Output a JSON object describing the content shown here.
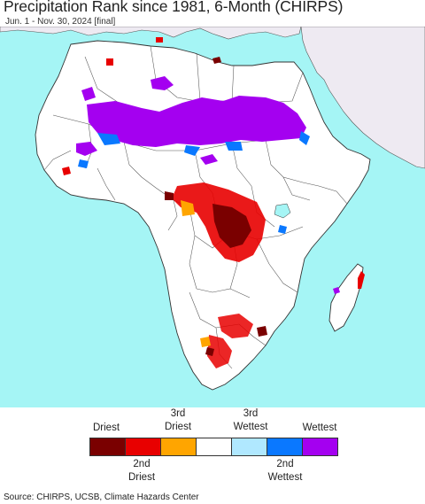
{
  "header": {
    "title": "Precipitation Rank since 1981, 6-Month (CHIRPS)",
    "subtitle": "Jun. 1 - Nov. 30, 2024 [final]"
  },
  "legend": {
    "top_labels": [
      {
        "name": "driest",
        "line1": "Driest",
        "line2": ""
      },
      {
        "name": "3rd-driest",
        "line1": "3rd",
        "line2": "Driest"
      },
      {
        "name": "3rd-wettest",
        "line1": "3rd",
        "line2": "Wettest"
      },
      {
        "name": "wettest",
        "line1": "Wettest",
        "line2": ""
      }
    ],
    "bottom_labels": [
      {
        "name": "2nd-driest",
        "line1": "2nd",
        "line2": "Driest"
      },
      {
        "name": "2nd-wettest",
        "line1": "2nd",
        "line2": "Wettest"
      }
    ],
    "swatches": [
      {
        "name": "driest",
        "color": "#7a0000"
      },
      {
        "name": "2nd-driest",
        "color": "#e80000"
      },
      {
        "name": "3rd-driest",
        "color": "#ffa500"
      },
      {
        "name": "normal",
        "color": "#ffffff"
      },
      {
        "name": "3rd-wettest",
        "color": "#b0e8ff"
      },
      {
        "name": "2nd-wettest",
        "color": "#0a78ff"
      },
      {
        "name": "wettest",
        "color": "#a400f0"
      }
    ]
  },
  "map": {
    "ocean_color": "#a5f5f5",
    "land_color": "#ffffff",
    "masked_land_color": "#eeeaf2"
  },
  "footer": {
    "source": "Source: CHIRPS, UCSB, Climate Hazards Center"
  }
}
